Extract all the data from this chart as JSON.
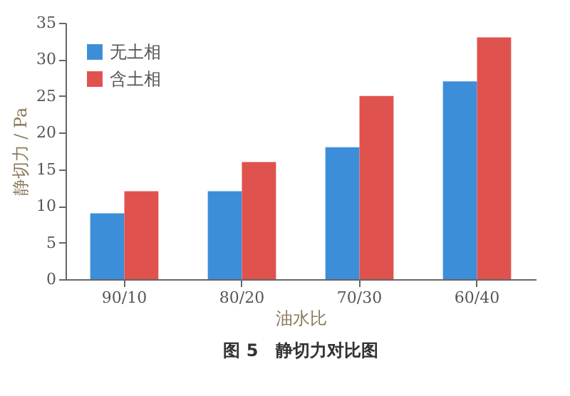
{
  "chart_data": {
    "type": "bar",
    "title": "图 5　静切力对比图",
    "xlabel": "油水比",
    "ylabel": "静切力 / Pa",
    "categories": [
      "90/10",
      "80/20",
      "70/30",
      "60/40"
    ],
    "series": [
      {
        "name": "无土相",
        "color": "#3d8ed8",
        "values": [
          9,
          12,
          18,
          27
        ]
      },
      {
        "name": "含土相",
        "color": "#e0524e",
        "values": [
          12,
          16,
          25,
          33
        ]
      }
    ],
    "ylim": [
      0,
      35
    ],
    "yticks": [
      0,
      5,
      10,
      15,
      20,
      25,
      30,
      35
    ],
    "grid": false,
    "legend": "top left"
  }
}
